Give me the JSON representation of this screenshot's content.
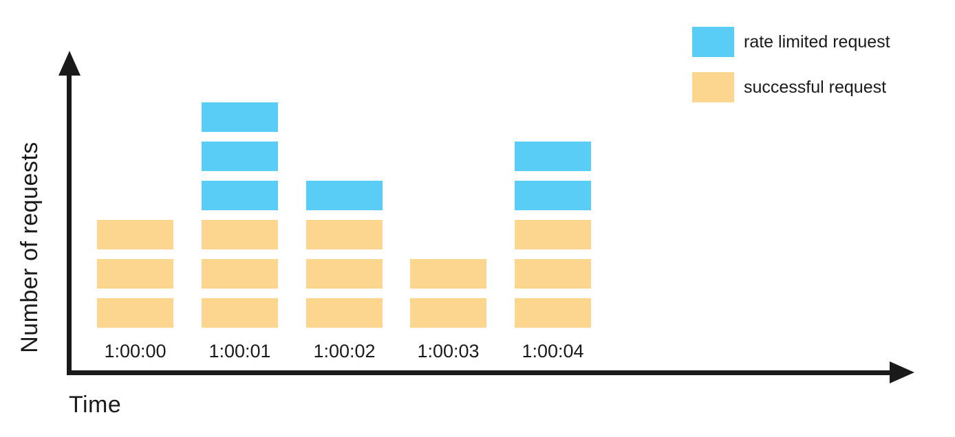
{
  "chart_data": {
    "type": "bar",
    "stacked": true,
    "categories": [
      "1:00:00",
      "1:00:01",
      "1:00:02",
      "1:00:03",
      "1:00:04"
    ],
    "series": [
      {
        "name": "successful request",
        "color": "#FCD58F",
        "values": [
          3,
          3,
          3,
          2,
          3
        ]
      },
      {
        "name": "rate limited request",
        "color": "#5ACDF7",
        "values": [
          0,
          3,
          1,
          0,
          2
        ]
      }
    ],
    "title": "",
    "xlabel": "Time",
    "ylabel": "Number of requests",
    "ylim": [
      0,
      7
    ],
    "grid": false,
    "legend_position": "top-right",
    "axis_color": "#1a1a1a"
  },
  "legend": {
    "items": [
      {
        "label": "rate limited request",
        "color": "#5ACDF7"
      },
      {
        "label": "successful request",
        "color": "#FCD58F"
      }
    ]
  }
}
